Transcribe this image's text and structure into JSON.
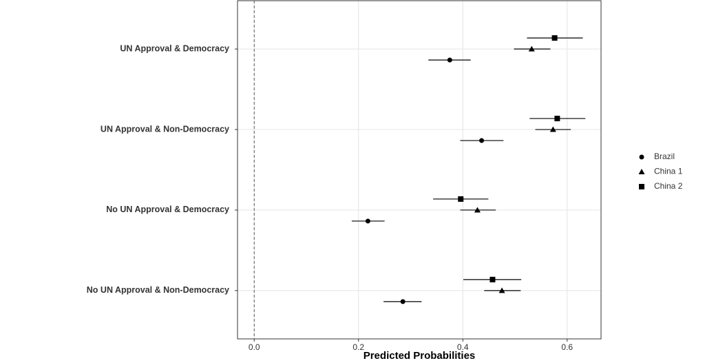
{
  "chart_data": {
    "type": "dotplot",
    "x_label": "Predicted Probabilities",
    "categories": [
      "UN Approval & Democracy",
      "UN Approval & Non-Democracy",
      "No UN Approval & Democracy",
      "No UN Approval & Non-Democracy"
    ],
    "series": [
      {
        "name": "China 2",
        "color": "#000000",
        "shape": "square",
        "values": [
          0.576,
          0.581,
          0.396,
          0.457
        ],
        "low": [
          0.523,
          0.528,
          0.343,
          0.401
        ],
        "high": [
          0.63,
          0.635,
          0.449,
          0.512
        ]
      },
      {
        "name": "China 1",
        "color": "#000000",
        "shape": "triangle",
        "values": [
          0.532,
          0.573,
          0.428,
          0.475
        ],
        "low": [
          0.498,
          0.539,
          0.395,
          0.441
        ],
        "high": [
          0.568,
          0.607,
          0.463,
          0.511
        ]
      },
      {
        "name": "Brazil",
        "color": "#000000",
        "shape": "circle",
        "values": [
          0.375,
          0.436,
          0.218,
          0.285
        ],
        "low": [
          0.334,
          0.395,
          0.187,
          0.248
        ],
        "high": [
          0.415,
          0.478,
          0.25,
          0.321
        ]
      }
    ],
    "legend_order": [
      "Brazil",
      "China 1",
      "China 2"
    ],
    "xlim": [
      -0.032,
      0.665
    ],
    "xticks": [
      {
        "value": 0,
        "label": "0.0"
      },
      0.2,
      0.4,
      0.6
    ],
    "vline": 0,
    "grid": true,
    "legend": "right"
  }
}
